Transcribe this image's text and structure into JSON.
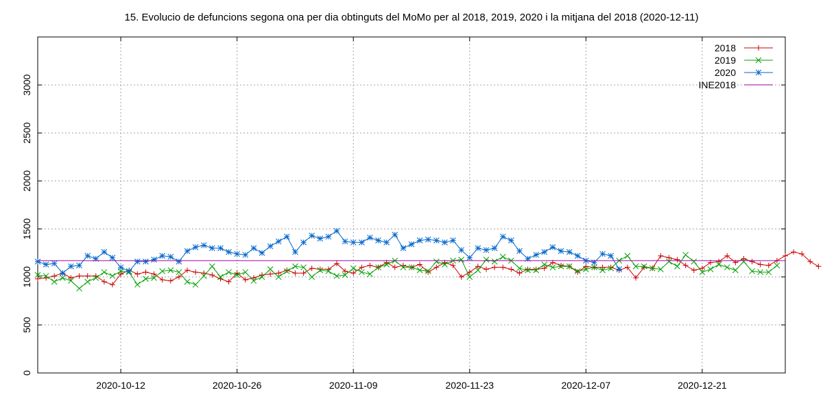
{
  "chart_data": {
    "type": "line",
    "title": "15. Evolucio de defuncions segona ona per dia obtinguts del MoMo per al 2018, 2019, 2020 i la mitjana del 2018 (2020-12-11)",
    "xlabel": "",
    "ylabel": "",
    "x_start": "2020-10-02",
    "x_range": [
      "2020-10-02",
      "2020-12-31"
    ],
    "x_ticks": [
      {
        "label": "2020-10-12",
        "day": 10
      },
      {
        "label": "2020-10-26",
        "day": 24
      },
      {
        "label": "2020-11-09",
        "day": 38
      },
      {
        "label": "2020-11-23",
        "day": 52
      },
      {
        "label": "2020-12-07",
        "day": 66
      },
      {
        "label": "2020-12-21",
        "day": 80
      }
    ],
    "ylim": [
      0,
      3500
    ],
    "y_ticks": [
      0,
      500,
      1000,
      1500,
      2000,
      2500,
      3000
    ],
    "grid": true,
    "legend_position": "top-right",
    "colors": {
      "s2018": "#cc0000",
      "s2019": "#00a000",
      "s2020": "#0066cc",
      "ine": "#a000a0",
      "grid": "#a0a0a0",
      "axis": "#000000"
    },
    "series": [
      {
        "name": "2018",
        "color": "#cc0000",
        "marker": "plus",
        "x_start_day": 0,
        "values": [
          980,
          990,
          1010,
          1040,
          990,
          1010,
          1010,
          1010,
          950,
          920,
          1030,
          1070,
          1030,
          1050,
          1030,
          970,
          960,
          1000,
          1070,
          1050,
          1040,
          1020,
          980,
          950,
          1040,
          970,
          990,
          1020,
          1030,
          1040,
          1070,
          1040,
          1040,
          1090,
          1080,
          1080,
          1140,
          1060,
          1040,
          1100,
          1120,
          1100,
          1150,
          1100,
          1120,
          1100,
          1130,
          1050,
          1100,
          1150,
          1120,
          1000,
          1050,
          1110,
          1080,
          1100,
          1100,
          1080,
          1040,
          1080,
          1080,
          1090,
          1150,
          1120,
          1110,
          1050,
          1110,
          1100,
          1100,
          1100,
          1070,
          1100,
          990,
          1100,
          1090,
          1220,
          1200,
          1180,
          1120,
          1070,
          1090,
          1150,
          1160,
          1220,
          1150,
          1190,
          1160,
          1130,
          1120,
          1170,
          1220,
          1260,
          1240,
          1160,
          1110
        ]
      },
      {
        "name": "2019",
        "color": "#00a000",
        "marker": "cross",
        "x_start_day": 0,
        "values": [
          1020,
          1010,
          950,
          990,
          960,
          880,
          950,
          990,
          1050,
          1010,
          1060,
          1050,
          920,
          980,
          990,
          1060,
          1070,
          1050,
          950,
          920,
          1010,
          1110,
          1000,
          1050,
          1020,
          1050,
          960,
          1000,
          1080,
          1000,
          1060,
          1110,
          1100,
          1000,
          1070,
          1060,
          1010,
          1020,
          1090,
          1050,
          1030,
          1100,
          1130,
          1170,
          1100,
          1100,
          1070,
          1060,
          1160,
          1130,
          1170,
          1180,
          1000,
          1070,
          1180,
          1160,
          1210,
          1170,
          1090,
          1070,
          1070,
          1130,
          1100,
          1110,
          1110,
          1060,
          1080,
          1100,
          1070,
          1090,
          1170,
          1220,
          1110,
          1110,
          1090,
          1080,
          1160,
          1110,
          1230,
          1160,
          1050,
          1080,
          1130,
          1100,
          1070,
          1160,
          1060,
          1050,
          1050,
          1120
        ]
      },
      {
        "name": "2020",
        "color": "#0066cc",
        "marker": "star",
        "x_start_day": 0,
        "values": [
          1160,
          1130,
          1140,
          1040,
          1110,
          1120,
          1220,
          1190,
          1260,
          1200,
          1100,
          1060,
          1160,
          1160,
          1180,
          1220,
          1210,
          1160,
          1270,
          1310,
          1330,
          1300,
          1300,
          1260,
          1240,
          1230,
          1300,
          1250,
          1320,
          1370,
          1420,
          1260,
          1360,
          1430,
          1400,
          1420,
          1480,
          1370,
          1360,
          1360,
          1410,
          1380,
          1360,
          1440,
          1300,
          1340,
          1380,
          1390,
          1380,
          1360,
          1380,
          1280,
          1200,
          1300,
          1280,
          1300,
          1420,
          1380,
          1270,
          1190,
          1230,
          1260,
          1310,
          1270,
          1260,
          1220,
          1170,
          1150,
          1240,
          1220,
          1080
        ]
      },
      {
        "name": "INE2018",
        "color": "#a000a0",
        "marker": "none",
        "constant": 1170
      }
    ]
  }
}
